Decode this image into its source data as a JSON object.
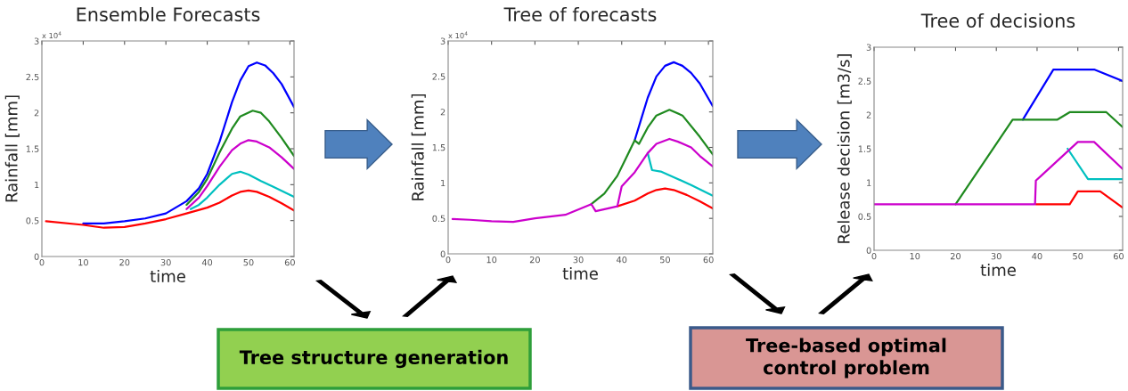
{
  "chart_data": [
    {
      "type": "line",
      "title": "Ensemble Forecasts",
      "xlabel": "time",
      "ylabel": "Rainfall [mm]",
      "xlim": [
        0,
        61
      ],
      "xticks": [
        0,
        10,
        20,
        30,
        40,
        50,
        60
      ],
      "ylim": [
        0,
        3
      ],
      "yticks": [
        0,
        0.5,
        1,
        1.5,
        2,
        2.5,
        3
      ],
      "grid": false,
      "legend": false,
      "annotations": [
        "x 10$^{4}$",
        "Tree structure generation"
      ],
      "series": [
        {
          "color": "#0000ff",
          "x": [
            10,
            15,
            20,
            25,
            30,
            35,
            38,
            40,
            43,
            46,
            48,
            50,
            52,
            54,
            56,
            58,
            61
          ],
          "values": [
            0.46,
            0.46,
            0.49,
            0.53,
            0.6,
            0.77,
            0.95,
            1.15,
            1.6,
            2.15,
            2.45,
            2.65,
            2.7,
            2.66,
            2.55,
            2.4,
            2.08
          ]
        },
        {
          "color": "#1f8a1f",
          "x": [
            35,
            38,
            40,
            43,
            46,
            48,
            51,
            53,
            55,
            58,
            61
          ],
          "values": [
            0.72,
            0.9,
            1.08,
            1.45,
            1.78,
            1.95,
            2.03,
            2.0,
            1.88,
            1.65,
            1.4
          ]
        },
        {
          "color": "#cc00cc",
          "x": [
            35,
            38,
            40,
            43,
            46,
            48,
            50,
            52,
            55,
            58,
            61
          ],
          "values": [
            0.66,
            0.82,
            0.98,
            1.25,
            1.48,
            1.57,
            1.62,
            1.6,
            1.52,
            1.38,
            1.22
          ]
        },
        {
          "color": "#00c0c0",
          "x": [
            36,
            38,
            40,
            43,
            46,
            48,
            50,
            53,
            56,
            61
          ],
          "values": [
            0.66,
            0.72,
            0.82,
            1.0,
            1.15,
            1.18,
            1.14,
            1.05,
            0.97,
            0.83
          ]
        },
        {
          "color": "#ff0000",
          "x": [
            1,
            10,
            15,
            20,
            25,
            30,
            35,
            40,
            43,
            46,
            48,
            50,
            52,
            55,
            58,
            61
          ],
          "values": [
            0.49,
            0.44,
            0.4,
            0.41,
            0.46,
            0.52,
            0.6,
            0.68,
            0.75,
            0.85,
            0.9,
            0.92,
            0.9,
            0.83,
            0.74,
            0.64
          ]
        }
      ]
    },
    {
      "type": "line",
      "title": "Tree of forecasts",
      "xlabel": "time",
      "ylabel": "Rainfall [mm]",
      "xlim": [
        0,
        61
      ],
      "xticks": [
        0,
        10,
        20,
        30,
        40,
        50,
        60
      ],
      "ylim": [
        0,
        3
      ],
      "yticks": [
        0,
        0.5,
        1,
        1.5,
        2,
        2.5,
        3
      ],
      "grid": false,
      "legend": false,
      "annotations": [
        "x 10$^{4}$"
      ],
      "series": [
        {
          "color": "#0000ff",
          "x": [
            43,
            44.5,
            46,
            48,
            50,
            52,
            54,
            56,
            58,
            61
          ],
          "values": [
            1.6,
            1.9,
            2.2,
            2.5,
            2.65,
            2.7,
            2.65,
            2.55,
            2.4,
            2.08
          ]
        },
        {
          "color": "#1f8a1f",
          "x": [
            33,
            36,
            39,
            41,
            43,
            44,
            46,
            48,
            51,
            54,
            58,
            61
          ],
          "values": [
            0.7,
            0.85,
            1.1,
            1.35,
            1.6,
            1.55,
            1.78,
            1.95,
            2.03,
            1.95,
            1.65,
            1.4
          ]
        },
        {
          "color": "#ff0000",
          "x": [
            39,
            43,
            46,
            48,
            50,
            52,
            55,
            58,
            61
          ],
          "values": [
            0.67,
            0.75,
            0.85,
            0.9,
            0.92,
            0.9,
            0.83,
            0.74,
            0.64
          ]
        },
        {
          "color": "#00c0c0",
          "x": [
            46,
            47,
            49,
            52,
            56,
            61
          ],
          "values": [
            1.42,
            1.18,
            1.16,
            1.08,
            0.97,
            0.82
          ]
        },
        {
          "color": "#cc00cc",
          "x": [
            1,
            5,
            10,
            15,
            20,
            27,
            33,
            34,
            39,
            40,
            43,
            46,
            48,
            51,
            53,
            56,
            58,
            61
          ],
          "values": [
            0.49,
            0.48,
            0.46,
            0.45,
            0.5,
            0.55,
            0.7,
            0.6,
            0.67,
            0.95,
            1.15,
            1.42,
            1.55,
            1.62,
            1.58,
            1.5,
            1.38,
            1.23
          ]
        }
      ]
    },
    {
      "type": "line",
      "title": "Tree of decisions",
      "xlabel": "time",
      "ylabel": "Release decision [m3/s]",
      "xlim": [
        0,
        61
      ],
      "xticks": [
        0,
        10,
        20,
        30,
        40,
        50,
        60
      ],
      "ylim": [
        0,
        3
      ],
      "yticks": [
        0,
        0.5,
        1,
        1.5,
        2,
        2.5,
        3
      ],
      "grid": false,
      "legend": false,
      "annotations": [
        "Tree-based optimal\ncontrol problem"
      ],
      "series": [
        {
          "color": "#0000ff",
          "x": [
            36.5,
            44,
            54,
            61
          ],
          "values": [
            1.93,
            2.67,
            2.67,
            2.5
          ]
        },
        {
          "color": "#1f8a1f",
          "x": [
            20,
            34,
            45,
            48,
            57,
            61
          ],
          "values": [
            0.68,
            1.93,
            1.93,
            2.04,
            2.04,
            1.82
          ]
        },
        {
          "color": "#00c0c0",
          "x": [
            47.5,
            52.5,
            61
          ],
          "values": [
            1.5,
            1.05,
            1.05
          ]
        },
        {
          "color": "#ff0000",
          "x": [
            39.7,
            48,
            50,
            55.5,
            61
          ],
          "values": [
            0.68,
            0.68,
            0.87,
            0.87,
            0.63
          ]
        },
        {
          "color": "#cc00cc",
          "x": [
            0,
            39.5,
            39.7,
            41,
            50,
            54,
            61
          ],
          "values": [
            0.68,
            0.68,
            1.03,
            1.1,
            1.6,
            1.6,
            1.2
          ]
        }
      ]
    }
  ]
}
